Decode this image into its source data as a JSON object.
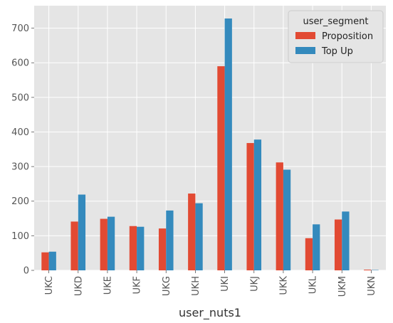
{
  "chart_data": {
    "type": "bar",
    "categories": [
      "UKC",
      "UKD",
      "UKE",
      "UKF",
      "UKG",
      "UKH",
      "UKI",
      "UKJ",
      "UKK",
      "UKL",
      "UKM",
      "UKN"
    ],
    "series": [
      {
        "name": "Proposition",
        "color": "#E24A33",
        "values": [
          52,
          141,
          149,
          128,
          121,
          222,
          590,
          368,
          312,
          93,
          147,
          2
        ]
      },
      {
        "name": "Top Up",
        "color": "#348ABD",
        "values": [
          54,
          219,
          155,
          126,
          173,
          194,
          728,
          378,
          291,
          133,
          170,
          1
        ]
      }
    ],
    "title": "",
    "xlabel": "user_nuts1",
    "ylabel": "",
    "ylim": [
      0,
      765
    ],
    "yticks": [
      0,
      100,
      200,
      300,
      400,
      500,
      600,
      700
    ],
    "legend": {
      "title": "user_segment",
      "position": "top-right"
    },
    "grid": true,
    "style": {
      "background": "#E5E5E5",
      "grid_color": "#FFFFFF",
      "tick_color": "#555555"
    }
  }
}
